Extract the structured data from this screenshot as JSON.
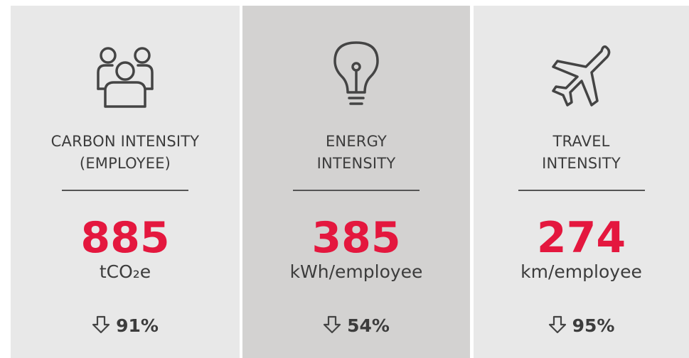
{
  "cards": [
    {
      "title": [
        "CARBON INTENSITY",
        "(EMPLOYEE)"
      ],
      "value": 885,
      "unit": "tCO₂e",
      "change": "91%"
    },
    {
      "title": [
        "ENERGY",
        "INTENSITY"
      ],
      "value": 385,
      "unit": "kWh/employee",
      "change": "54%"
    },
    {
      "title": [
        "TRAVEL",
        "INTENSITY"
      ],
      "value": 274,
      "unit": "km/employee",
      "change": "95%"
    }
  ]
}
